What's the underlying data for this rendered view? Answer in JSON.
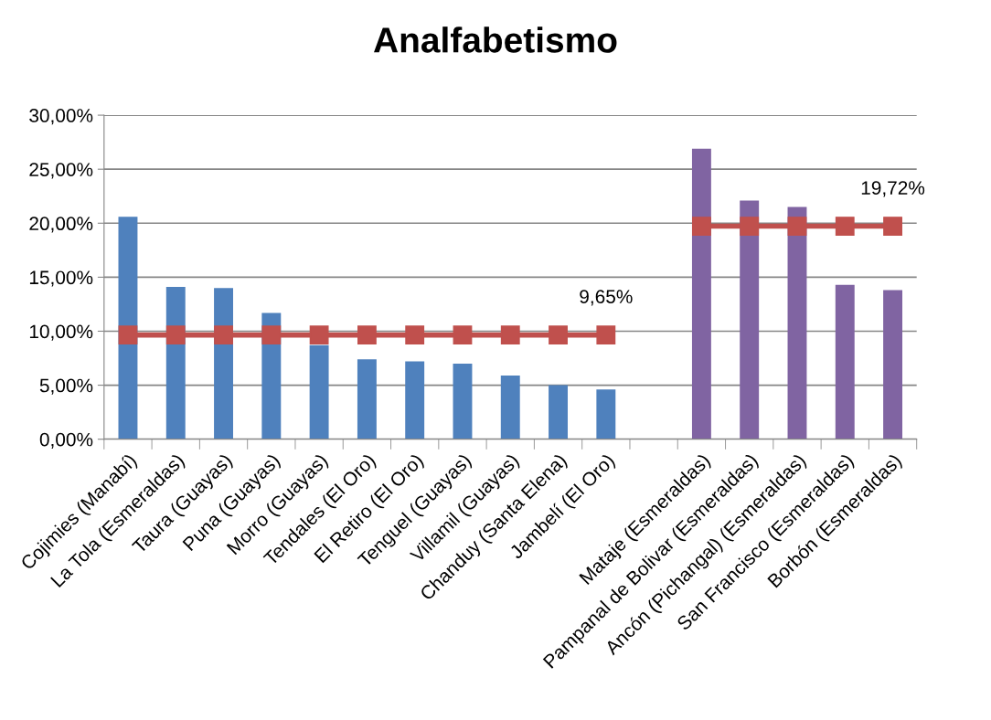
{
  "chart_data": {
    "type": "bar",
    "title": "Analfabetismo",
    "categories": [
      "Cojimies (Manabí)",
      "La Tola (Esmeraldas)",
      "Taura (Guayas)",
      "Puna (Guayas)",
      "Morro (Guayas)",
      "Tendales (El Oro)",
      "El Retiro (El Oro)",
      "Tenguel (Guayas)",
      "Villamil (Guayas)",
      "Chanduy (Santa Elena)",
      "Jambelí (El Oro)",
      null,
      "Mataje (Esmeraldas)",
      "Pampanal de Bolivar (Esmeraldas)",
      "Ancón (Pichangal) (Esmeraldas)",
      "San Francisco (Esmeraldas)",
      "Borbón (Esmeraldas)"
    ],
    "series": [
      {
        "colors": [
          "#4f81bd",
          "#4f81bd",
          "#4f81bd",
          "#4f81bd",
          "#4f81bd",
          "#4f81bd",
          "#4f81bd",
          "#4f81bd",
          "#4f81bd",
          "#4f81bd",
          "#4f81bd",
          "#4f81bd",
          "#8064a2",
          "#8064a2",
          "#8064a2",
          "#8064a2",
          "#8064a2"
        ],
        "values": [
          20.6,
          14.1,
          14.0,
          11.7,
          8.7,
          7.4,
          7.2,
          7.0,
          5.9,
          5.0,
          4.6,
          null,
          26.9,
          22.1,
          21.5,
          14.3,
          13.8
        ]
      },
      {
        "type": "line",
        "color": "#c0504d",
        "marker": "square",
        "values": [
          9.65,
          9.65,
          9.65,
          9.65,
          9.65,
          9.65,
          9.65,
          9.65,
          9.65,
          9.65,
          9.65,
          null,
          19.72,
          19.72,
          19.72,
          19.72,
          19.72
        ],
        "value_labels": [
          null,
          null,
          null,
          null,
          null,
          null,
          null,
          null,
          null,
          null,
          "9,65%",
          null,
          null,
          null,
          null,
          null,
          "19,72%"
        ]
      }
    ],
    "ylim": [
      0,
      30
    ],
    "yticks": [
      {
        "value": 0,
        "label": "0,00%"
      },
      {
        "value": 5,
        "label": "5,00%"
      },
      {
        "value": 10,
        "label": "10,00%"
      },
      {
        "value": 15,
        "label": "15,00%"
      },
      {
        "value": 20,
        "label": "20,00%"
      },
      {
        "value": 25,
        "label": "25,00%"
      },
      {
        "value": 30,
        "label": "30,00%"
      }
    ],
    "grid": "y",
    "legend": false
  }
}
